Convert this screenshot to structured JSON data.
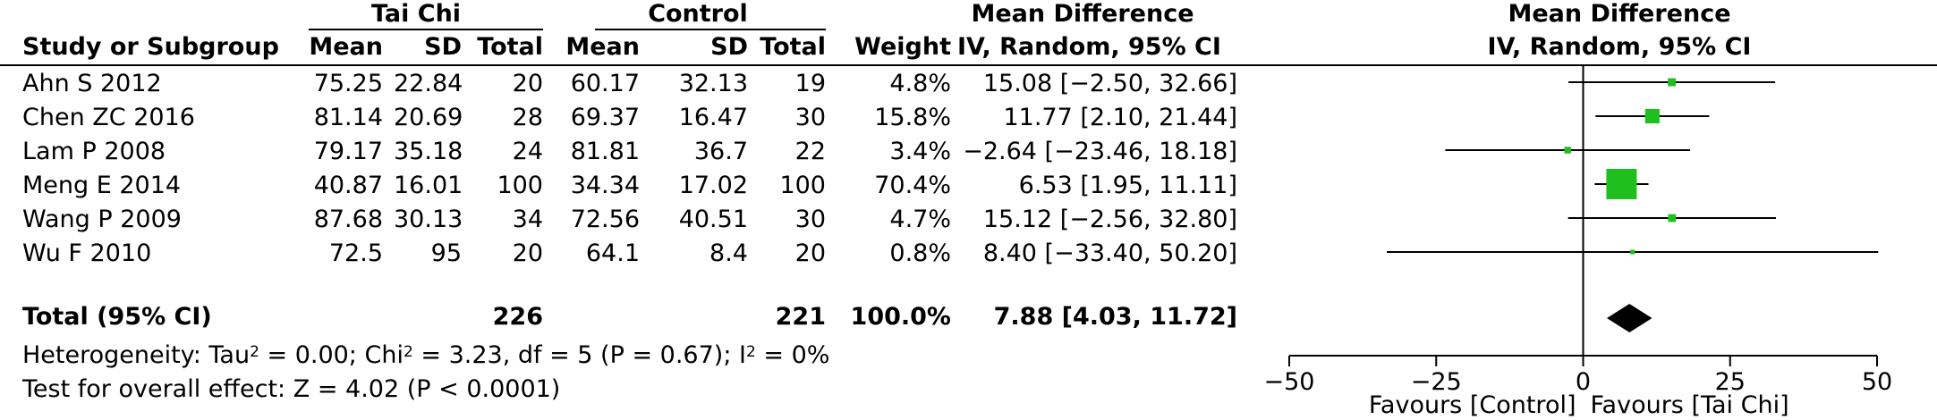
{
  "headers": {
    "group1": "Tai Chi",
    "group2": "Control",
    "md_line1": "Mean Difference",
    "md_line2": "IV, Random, 95% CI",
    "plot_line1": "Mean Difference",
    "plot_line2": "IV, Random, 95% CI",
    "study": "Study or Subgroup",
    "mean1": "Mean",
    "sd1": "SD",
    "total1": "Total",
    "mean2": "Mean",
    "sd2": "SD",
    "total2": "Total",
    "weight": "Weight"
  },
  "studies": [
    {
      "name": "Ahn S 2012",
      "mean1": "75.25",
      "sd1": "22.84",
      "n1": "20",
      "mean2": "60.17",
      "sd2": "32.13",
      "n2": "19",
      "weight": "4.8%",
      "ci": "15.08 [−2.50, 32.66]"
    },
    {
      "name": "Chen ZC 2016",
      "mean1": "81.14",
      "sd1": "20.69",
      "n1": "28",
      "mean2": "69.37",
      "sd2": "16.47",
      "n2": "30",
      "weight": "15.8%",
      "ci": "11.77 [2.10, 21.44]"
    },
    {
      "name": "Lam P 2008",
      "mean1": "79.17",
      "sd1": "35.18",
      "n1": "24",
      "mean2": "81.81",
      "sd2": "36.7",
      "n2": "22",
      "weight": "3.4%",
      "ci": "−2.64 [−23.46, 18.18]"
    },
    {
      "name": "Meng E 2014",
      "mean1": "40.87",
      "sd1": "16.01",
      "n1": "100",
      "mean2": "34.34",
      "sd2": "17.02",
      "n2": "100",
      "weight": "70.4%",
      "ci": "6.53 [1.95, 11.11]"
    },
    {
      "name": "Wang P 2009",
      "mean1": "87.68",
      "sd1": "30.13",
      "n1": "34",
      "mean2": "72.56",
      "sd2": "40.51",
      "n2": "30",
      "weight": "4.7%",
      "ci": "15.12 [−2.56, 32.80]"
    },
    {
      "name": "Wu F 2010",
      "mean1": "72.5",
      "sd1": "95",
      "n1": "20",
      "mean2": "64.1",
      "sd2": "8.4",
      "n2": "20",
      "weight": "0.8%",
      "ci": "8.40 [−33.40, 50.20]"
    }
  ],
  "total": {
    "label": "Total (95% CI)",
    "n1": "226",
    "n2": "221",
    "weight": "100.0%",
    "ci": "7.88 [4.03, 11.72]"
  },
  "heterogeneity": {
    "prefix": "Heterogeneity: Tau",
    "mid1": " = 0.00; Chi",
    "mid2": " = 3.23, df = 5 (P = 0.67); I",
    "suffix": " = 0%",
    "sup": "2"
  },
  "overall_effect": "Test for overall effect: Z = 4.02 (P < 0.0001)",
  "chart_data": {
    "type": "forest",
    "xlim": [
      -50,
      50
    ],
    "ticks": [
      -50,
      -25,
      0,
      25,
      50
    ],
    "tick_labels": [
      "−50",
      "−25",
      "0",
      "25",
      "50"
    ],
    "favours_left": "Favours [Control]",
    "favours_right": "Favours [Tai Chi]",
    "marker_color": "#1fbf1f",
    "points": [
      {
        "est": 15.08,
        "lo": -2.5,
        "hi": 32.66,
        "weight": 4.8
      },
      {
        "est": 11.77,
        "lo": 2.1,
        "hi": 21.44,
        "weight": 15.8
      },
      {
        "est": -2.64,
        "lo": -23.46,
        "hi": 18.18,
        "weight": 3.4
      },
      {
        "est": 6.53,
        "lo": 1.95,
        "hi": 11.11,
        "weight": 70.4
      },
      {
        "est": 15.12,
        "lo": -2.56,
        "hi": 32.8,
        "weight": 4.7
      },
      {
        "est": 8.4,
        "lo": -33.4,
        "hi": 50.2,
        "weight": 0.8
      }
    ],
    "pooled": {
      "est": 7.88,
      "lo": 4.03,
      "hi": 11.72
    }
  }
}
